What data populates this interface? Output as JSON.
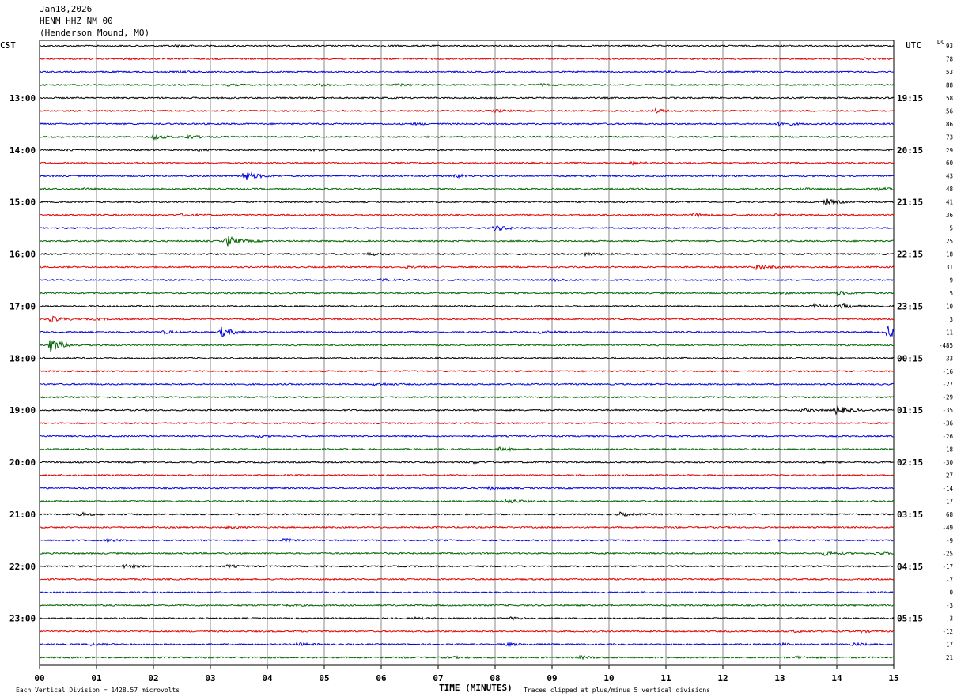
{
  "header": {
    "date": "Jan18,2026",
    "station": "HENM HHZ NM 00",
    "location": "(Henderson Mound, MO)",
    "left_zone": "CST",
    "right_zone": "UTC",
    "dc_label": "DC"
  },
  "footer": {
    "xlabel": "TIME (MINUTES)",
    "scale_note": "Each Vertical Division = 1428.57 microvolts",
    "clip_note": "Traces clipped at plus/minus 5 vertical divisions"
  },
  "chart_data": {
    "type": "line",
    "title": "",
    "xlabel": "TIME (MINUTES)",
    "xlim": [
      0,
      15
    ],
    "x_ticks": [
      "00",
      "01",
      "02",
      "03",
      "04",
      "05",
      "06",
      "07",
      "08",
      "09",
      "10",
      "11",
      "12",
      "13",
      "14",
      "15"
    ],
    "row_minutes": 15,
    "row_count": 48,
    "grid": true,
    "trace_colors": [
      "#000000",
      "#e00000",
      "#0000e0",
      "#006400"
    ],
    "left_hour_labels": [
      "13:00",
      "14:00",
      "15:00",
      "16:00",
      "17:00",
      "18:00",
      "19:00",
      "20:00",
      "21:00",
      "22:00",
      "23:00"
    ],
    "right_hour_labels": [
      "19:15",
      "20:15",
      "21:15",
      "22:15",
      "23:15",
      "00:15",
      "01:15",
      "02:15",
      "03:15",
      "04:15",
      "05:15"
    ],
    "hour_label_first_row": 4,
    "hour_label_every_rows": 4,
    "dc_offsets": [
      "93",
      "78",
      "53",
      "88",
      "58",
      "56",
      "86",
      "73",
      "29",
      "60",
      "43",
      "48",
      "41",
      "36",
      "5",
      "25",
      "18",
      "31",
      "9",
      "5",
      "-10",
      "3",
      "11",
      "-485",
      "-33",
      "-16",
      "-27",
      "-29",
      "-35",
      "-36",
      "-26",
      "-18",
      "-30",
      "-27",
      "-14",
      "17",
      "68",
      "-49",
      "-9",
      "-25",
      "-17",
      "-7",
      "0",
      "-3",
      "3",
      "-12",
      "-17",
      "21"
    ],
    "events": [
      {
        "row": 0,
        "minute": 2.4,
        "amp": 0.25
      },
      {
        "row": 0,
        "minute": 6.0,
        "amp": 0.2
      },
      {
        "row": 1,
        "minute": 1.5,
        "amp": 0.15
      },
      {
        "row": 1,
        "minute": 14.5,
        "amp": 0.15
      },
      {
        "row": 2,
        "minute": 2.5,
        "amp": 0.25
      },
      {
        "row": 2,
        "minute": 11.0,
        "amp": 0.2
      },
      {
        "row": 3,
        "minute": 3.3,
        "amp": 0.2
      },
      {
        "row": 3,
        "minute": 4.9,
        "amp": 0.25
      },
      {
        "row": 3,
        "minute": 6.3,
        "amp": 0.2
      },
      {
        "row": 3,
        "minute": 8.8,
        "amp": 0.2
      },
      {
        "row": 5,
        "minute": 8.0,
        "amp": 0.35
      },
      {
        "row": 5,
        "minute": 10.8,
        "amp": 0.6
      },
      {
        "row": 6,
        "minute": 6.6,
        "amp": 0.2
      },
      {
        "row": 6,
        "minute": 13.0,
        "amp": 0.6
      },
      {
        "row": 7,
        "minute": 2.0,
        "amp": 0.7
      },
      {
        "row": 7,
        "minute": 2.6,
        "amp": 0.5
      },
      {
        "row": 8,
        "minute": 0.5,
        "amp": 0.2
      },
      {
        "row": 8,
        "minute": 2.8,
        "amp": 0.2
      },
      {
        "row": 8,
        "minute": 4.8,
        "amp": 0.2
      },
      {
        "row": 9,
        "minute": 10.4,
        "amp": 0.4
      },
      {
        "row": 10,
        "minute": 3.6,
        "amp": 1.5
      },
      {
        "row": 10,
        "minute": 7.3,
        "amp": 0.5
      },
      {
        "row": 10,
        "minute": 9.5,
        "amp": 0.25
      },
      {
        "row": 10,
        "minute": 11.8,
        "amp": 0.35
      },
      {
        "row": 11,
        "minute": 0.7,
        "amp": 0.2
      },
      {
        "row": 11,
        "minute": 13.3,
        "amp": 0.3
      },
      {
        "row": 11,
        "minute": 14.7,
        "amp": 0.4
      },
      {
        "row": 12,
        "minute": 13.8,
        "amp": 0.9
      },
      {
        "row": 13,
        "minute": 2.5,
        "amp": 0.3
      },
      {
        "row": 13,
        "minute": 11.5,
        "amp": 0.5
      },
      {
        "row": 13,
        "minute": 12.9,
        "amp": 0.3
      },
      {
        "row": 14,
        "minute": 8.0,
        "amp": 0.8
      },
      {
        "row": 14,
        "minute": 3.0,
        "amp": 0.2
      },
      {
        "row": 15,
        "minute": 3.3,
        "amp": 1.5
      },
      {
        "row": 16,
        "minute": 5.8,
        "amp": 0.35
      },
      {
        "row": 16,
        "minute": 9.6,
        "amp": 0.4
      },
      {
        "row": 17,
        "minute": 12.6,
        "amp": 0.9
      },
      {
        "row": 17,
        "minute": 6.4,
        "amp": 0.2
      },
      {
        "row": 18,
        "minute": 6.0,
        "amp": 0.3
      },
      {
        "row": 18,
        "minute": 9.0,
        "amp": 0.3
      },
      {
        "row": 19,
        "minute": 14.0,
        "amp": 0.6
      },
      {
        "row": 19,
        "minute": 13.0,
        "amp": 0.2
      },
      {
        "row": 20,
        "minute": 13.6,
        "amp": 0.4
      },
      {
        "row": 20,
        "minute": 14.1,
        "amp": 0.5
      },
      {
        "row": 21,
        "minute": 0.2,
        "amp": 0.8
      },
      {
        "row": 21,
        "minute": 1.0,
        "amp": 0.2
      },
      {
        "row": 22,
        "minute": 3.2,
        "amp": 1.4
      },
      {
        "row": 22,
        "minute": 2.2,
        "amp": 0.4
      },
      {
        "row": 22,
        "minute": 8.8,
        "amp": 0.3
      },
      {
        "row": 22,
        "minute": 14.9,
        "amp": 1.6
      },
      {
        "row": 23,
        "minute": 0.2,
        "amp": 2.0
      },
      {
        "row": 26,
        "minute": 5.9,
        "amp": 0.35
      },
      {
        "row": 28,
        "minute": 14.0,
        "amp": 1.2
      },
      {
        "row": 28,
        "minute": 13.4,
        "amp": 0.4
      },
      {
        "row": 30,
        "minute": 3.8,
        "amp": 0.2
      },
      {
        "row": 31,
        "minute": 8.1,
        "amp": 0.5
      },
      {
        "row": 32,
        "minute": 13.7,
        "amp": 0.5
      },
      {
        "row": 32,
        "minute": 7.6,
        "amp": 0.25
      },
      {
        "row": 34,
        "minute": 7.9,
        "amp": 0.3
      },
      {
        "row": 35,
        "minute": 8.2,
        "amp": 0.7
      },
      {
        "row": 36,
        "minute": 0.7,
        "amp": 0.5
      },
      {
        "row": 36,
        "minute": 10.2,
        "amp": 0.5
      },
      {
        "row": 37,
        "minute": 3.3,
        "amp": 0.2
      },
      {
        "row": 38,
        "minute": 1.2,
        "amp": 0.3
      },
      {
        "row": 38,
        "minute": 4.3,
        "amp": 0.4
      },
      {
        "row": 38,
        "minute": 13.0,
        "amp": 0.2
      },
      {
        "row": 39,
        "minute": 13.8,
        "amp": 0.6
      },
      {
        "row": 39,
        "minute": 14.7,
        "amp": 0.3
      },
      {
        "row": 40,
        "minute": 1.5,
        "amp": 0.45
      },
      {
        "row": 40,
        "minute": 3.3,
        "amp": 0.3
      },
      {
        "row": 43,
        "minute": 4.2,
        "amp": 0.3
      },
      {
        "row": 44,
        "minute": 8.3,
        "amp": 0.3
      },
      {
        "row": 44,
        "minute": 6.6,
        "amp": 0.2
      },
      {
        "row": 45,
        "minute": 13.2,
        "amp": 0.3
      },
      {
        "row": 45,
        "minute": 14.4,
        "amp": 0.3
      },
      {
        "row": 46,
        "minute": 0.9,
        "amp": 0.3
      },
      {
        "row": 46,
        "minute": 4.5,
        "amp": 0.45
      },
      {
        "row": 46,
        "minute": 8.2,
        "amp": 0.4
      },
      {
        "row": 46,
        "minute": 13.0,
        "amp": 0.35
      },
      {
        "row": 46,
        "minute": 14.3,
        "amp": 0.4
      },
      {
        "row": 47,
        "minute": 7.2,
        "amp": 0.25
      },
      {
        "row": 47,
        "minute": 9.5,
        "amp": 0.4
      },
      {
        "row": 47,
        "minute": 13.3,
        "amp": 0.4
      }
    ]
  }
}
